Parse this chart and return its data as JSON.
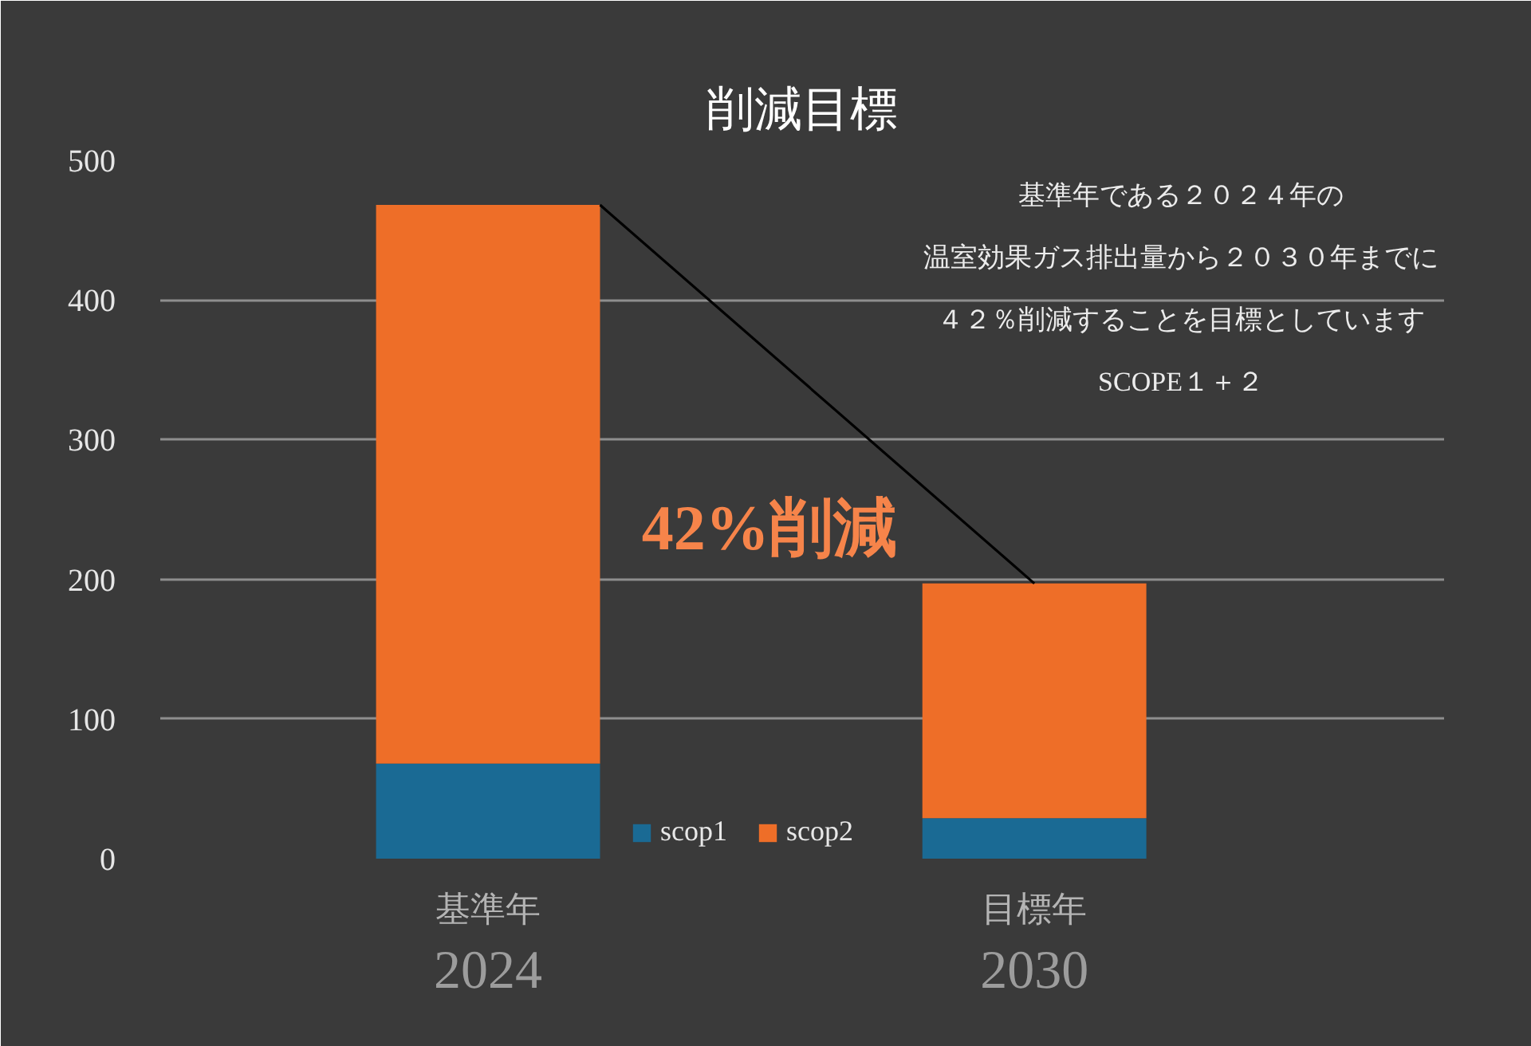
{
  "chart_data": {
    "type": "bar",
    "title": "削減目標",
    "categories": [
      "基準年",
      "目標年"
    ],
    "series": [
      {
        "name": "scop1",
        "color": "#1a6a94",
        "values": [
          68,
          29
        ]
      },
      {
        "name": "scop2",
        "color": "#ee6e28",
        "values": [
          400,
          168
        ]
      }
    ],
    "stacked": true,
    "ylim": [
      0,
      500
    ],
    "yticks": [
      0,
      100,
      200,
      300,
      400,
      500
    ],
    "grid": "y",
    "legend": "bottom",
    "annotations": [
      "基準年である２０２４年の",
      "温室効果ガス排出量から２０３０年までに",
      "４２％削減することを目標としています",
      "SCOPE１＋２",
      "42%削減",
      "2024",
      "2030"
    ]
  }
}
